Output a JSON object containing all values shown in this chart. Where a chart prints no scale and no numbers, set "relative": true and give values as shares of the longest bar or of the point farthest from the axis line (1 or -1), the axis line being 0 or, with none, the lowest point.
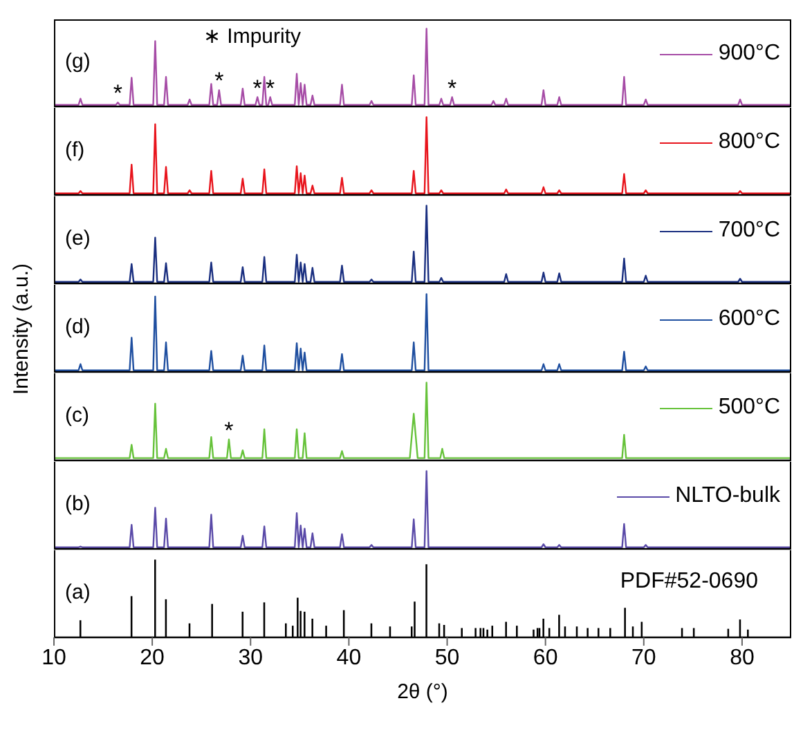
{
  "chart_data": [
    {
      "type": "line",
      "relative": true,
      "xlim": [
        10,
        85
      ],
      "tick_labels": false,
      "legend": "right",
      "annotations": [
        "(g)",
        "∗ Impurity",
        {
          "text": "*",
          "x": 16.5,
          "y": 0.05
        },
        {
          "text": "*",
          "x": 26.8,
          "y": 0.21
        },
        {
          "text": "*",
          "x": 30.7,
          "y": 0.12
        },
        {
          "text": "*",
          "x": 32,
          "y": 0.12
        },
        {
          "text": "*",
          "x": 50.5,
          "y": 0.12
        }
      ],
      "series": [
        {
          "name": "900°C",
          "color": "#a64ca6",
          "x": [
            10,
            12.5,
            12.7,
            12.9,
            16.3,
            16.5,
            16.7,
            17.7,
            17.9,
            18.1,
            20.1,
            20.3,
            20.5,
            21.2,
            21.4,
            21.6,
            23.6,
            23.8,
            24,
            25.8,
            26,
            26.2,
            26.6,
            26.8,
            27,
            29,
            29.2,
            29.4,
            30.5,
            30.7,
            30.9,
            31.2,
            31.4,
            31.6,
            31.8,
            32,
            32.2,
            34.5,
            34.7,
            34.9,
            35.1,
            35.3,
            35.5,
            35.7,
            36.1,
            36.3,
            36.5,
            39.1,
            39.3,
            39.5,
            42.1,
            42.3,
            42.5,
            46.4,
            46.6,
            46.8,
            47.7,
            47.9,
            48.1,
            49.2,
            49.4,
            49.6,
            50.3,
            50.5,
            50.7,
            54.5,
            54.7,
            54.9,
            55.8,
            56,
            56.2,
            59.6,
            59.8,
            60,
            61.2,
            61.4,
            61.6,
            67.8,
            68,
            68.2,
            70,
            70.2,
            70.4,
            79.6,
            79.8,
            80,
            85
          ],
          "values": [
            0.02,
            0.02,
            0.1,
            0.02,
            0.02,
            0.05,
            0.02,
            0.02,
            0.37,
            0.02,
            0.02,
            0.84,
            0.02,
            0.02,
            0.38,
            0.02,
            0.02,
            0.09,
            0.02,
            0.02,
            0.29,
            0.02,
            0.02,
            0.21,
            0.02,
            0.02,
            0.23,
            0.02,
            0.02,
            0.12,
            0.02,
            0.02,
            0.38,
            0.02,
            0.02,
            0.12,
            0.02,
            0.02,
            0.42,
            0.02,
            0.3,
            0.02,
            0.28,
            0.02,
            0.02,
            0.14,
            0.02,
            0.02,
            0.28,
            0.02,
            0.02,
            0.07,
            0.02,
            0.02,
            0.4,
            0.02,
            0.02,
            1,
            0.02,
            0.02,
            0.1,
            0.02,
            0.02,
            0.12,
            0.02,
            0.02,
            0.07,
            0.02,
            0.02,
            0.1,
            0.02,
            0.02,
            0.21,
            0.02,
            0.02,
            0.12,
            0.02,
            0.02,
            0.38,
            0.02,
            0.02,
            0.09,
            0.02,
            0.02,
            0.09,
            0.02,
            0.02
          ]
        }
      ]
    },
    {
      "type": "line",
      "relative": true,
      "xlim": [
        10,
        85
      ],
      "tick_labels": false,
      "legend": "right",
      "annotations": [
        "(f)"
      ],
      "series": [
        {
          "name": "800°C",
          "color": "#e8141c",
          "x": [
            10,
            12.5,
            12.7,
            12.9,
            17.7,
            17.9,
            18.1,
            20.1,
            20.3,
            20.5,
            21.2,
            21.4,
            21.6,
            23.6,
            23.8,
            24,
            25.8,
            26,
            26.2,
            29,
            29.2,
            29.4,
            31.2,
            31.4,
            31.6,
            34.5,
            34.7,
            34.9,
            35.1,
            35.3,
            35.5,
            35.7,
            36.1,
            36.3,
            36.5,
            39.1,
            39.3,
            39.5,
            42.1,
            42.3,
            42.5,
            46.4,
            46.6,
            46.8,
            47.7,
            47.9,
            48.1,
            49.2,
            49.4,
            49.6,
            55.8,
            56,
            56.2,
            59.6,
            59.8,
            60,
            61.2,
            61.4,
            61.6,
            67.8,
            68,
            68.2,
            70,
            70.2,
            70.4,
            79.6,
            79.8,
            80,
            85
          ],
          "values": [
            0.02,
            0.02,
            0.05,
            0.02,
            0.02,
            0.39,
            0.02,
            0.02,
            0.91,
            0.02,
            0.02,
            0.36,
            0.02,
            0.02,
            0.06,
            0.02,
            0.02,
            0.31,
            0.02,
            0.02,
            0.21,
            0.02,
            0.02,
            0.33,
            0.02,
            0.02,
            0.37,
            0.02,
            0.28,
            0.02,
            0.25,
            0.02,
            0.02,
            0.12,
            0.02,
            0.02,
            0.22,
            0.02,
            0.02,
            0.06,
            0.02,
            0.02,
            0.31,
            0.02,
            0.02,
            1,
            0.02,
            0.02,
            0.06,
            0.02,
            0.02,
            0.07,
            0.02,
            0.02,
            0.1,
            0.02,
            0.02,
            0.06,
            0.02,
            0.02,
            0.27,
            0.02,
            0.02,
            0.06,
            0.02,
            0.02,
            0.05,
            0.02,
            0.02
          ]
        }
      ]
    },
    {
      "type": "line",
      "relative": true,
      "xlim": [
        10,
        85
      ],
      "tick_labels": false,
      "legend": "right",
      "annotations": [
        "(e)"
      ],
      "series": [
        {
          "name": "700°C",
          "color": "#1a2f80",
          "x": [
            10,
            12.5,
            12.7,
            12.9,
            17.7,
            17.9,
            18.1,
            20.1,
            20.3,
            20.5,
            21.2,
            21.4,
            21.6,
            25.8,
            26,
            26.2,
            29,
            29.2,
            29.4,
            31.2,
            31.4,
            31.6,
            34.5,
            34.7,
            34.9,
            35.1,
            35.3,
            35.5,
            35.7,
            36.1,
            36.3,
            36.5,
            39.1,
            39.3,
            39.5,
            42.1,
            42.3,
            42.5,
            46.4,
            46.6,
            46.8,
            47.7,
            47.9,
            48.1,
            49.2,
            49.4,
            49.6,
            55.8,
            56,
            56.2,
            59.6,
            59.8,
            60,
            61.2,
            61.4,
            61.6,
            67.8,
            68,
            68.2,
            70,
            70.2,
            70.4,
            79.6,
            79.8,
            80,
            85
          ],
          "values": [
            0.02,
            0.02,
            0.05,
            0.02,
            0.02,
            0.25,
            0.02,
            0.02,
            0.59,
            0.02,
            0.02,
            0.26,
            0.02,
            0.02,
            0.27,
            0.02,
            0.02,
            0.21,
            0.02,
            0.02,
            0.34,
            0.02,
            0.02,
            0.37,
            0.02,
            0.27,
            0.02,
            0.25,
            0.02,
            0.02,
            0.2,
            0.02,
            0.02,
            0.23,
            0.02,
            0.02,
            0.05,
            0.02,
            0.02,
            0.41,
            0.02,
            0.02,
            1,
            0.02,
            0.02,
            0.07,
            0.02,
            0.02,
            0.12,
            0.02,
            0.02,
            0.14,
            0.02,
            0.02,
            0.13,
            0.02,
            0.02,
            0.32,
            0.02,
            0.02,
            0.1,
            0.02,
            0.02,
            0.06,
            0.02,
            0.02
          ]
        }
      ]
    },
    {
      "type": "line",
      "relative": true,
      "xlim": [
        10,
        85
      ],
      "tick_labels": false,
      "legend": "right",
      "ylabel": "Intensity (a.u.)",
      "annotations": [
        "(d)"
      ],
      "series": [
        {
          "name": "600°C",
          "color": "#1f4fa0",
          "x": [
            10,
            12.5,
            12.7,
            12.9,
            17.7,
            17.9,
            18.1,
            20.1,
            20.3,
            20.5,
            21.2,
            21.4,
            21.6,
            25.8,
            26,
            26.2,
            29,
            29.2,
            29.4,
            31.2,
            31.4,
            31.6,
            34.5,
            34.7,
            34.9,
            35.1,
            35.3,
            35.5,
            35.7,
            39.1,
            39.3,
            39.5,
            46.4,
            46.6,
            46.8,
            47.7,
            47.9,
            48.1,
            59.6,
            59.8,
            60,
            61.2,
            61.4,
            61.6,
            67.8,
            68,
            68.2,
            70,
            70.2,
            70.4,
            85
          ],
          "values": [
            0.02,
            0.02,
            0.1,
            0.02,
            0.02,
            0.44,
            0.02,
            0.02,
            0.97,
            0.02,
            0.02,
            0.38,
            0.02,
            0.02,
            0.27,
            0.02,
            0.02,
            0.21,
            0.02,
            0.02,
            0.34,
            0.02,
            0.02,
            0.37,
            0.02,
            0.3,
            0.02,
            0.25,
            0.02,
            0.02,
            0.23,
            0.02,
            0.02,
            0.38,
            0.02,
            0.02,
            1,
            0.02,
            0.02,
            0.1,
            0.02,
            0.02,
            0.1,
            0.02,
            0.02,
            0.26,
            0.02,
            0.02,
            0.07,
            0.02,
            0.02
          ]
        }
      ]
    },
    {
      "type": "line",
      "relative": true,
      "xlim": [
        10,
        85
      ],
      "tick_labels": false,
      "legend": "right",
      "annotations": [
        "(c)",
        {
          "text": "*",
          "x": 27.8,
          "y": 0.27
        }
      ],
      "series": [
        {
          "name": "500°C",
          "color": "#66c23a",
          "x": [
            10,
            17.7,
            17.9,
            18.1,
            20.1,
            20.3,
            20.5,
            21.2,
            21.4,
            21.6,
            25.8,
            26,
            26.2,
            27.6,
            27.8,
            28,
            29,
            29.2,
            29.4,
            31.2,
            31.4,
            31.6,
            34.5,
            34.7,
            34.9,
            35.3,
            35.5,
            35.7,
            39.1,
            39.3,
            39.5,
            46.2,
            46.6,
            47,
            47.7,
            47.9,
            48.1,
            49.3,
            49.5,
            49.7,
            67.8,
            68,
            68.2,
            85
          ],
          "values": [
            0.03,
            0.03,
            0.2,
            0.03,
            0.03,
            0.73,
            0.03,
            0.03,
            0.15,
            0.03,
            0.03,
            0.3,
            0.03,
            0.03,
            0.27,
            0.03,
            0.03,
            0.13,
            0.03,
            0.03,
            0.4,
            0.03,
            0.03,
            0.4,
            0.03,
            0.03,
            0.35,
            0.03,
            0.03,
            0.12,
            0.03,
            0.03,
            0.6,
            0.03,
            0.03,
            1,
            0.03,
            0.03,
            0.15,
            0.03,
            0.03,
            0.33,
            0.03,
            0.03
          ]
        }
      ]
    },
    {
      "type": "line",
      "relative": true,
      "xlim": [
        10,
        85
      ],
      "tick_labels": false,
      "legend": "right",
      "annotations": [
        "(b)"
      ],
      "series": [
        {
          "name": "NLTO-bulk",
          "color": "#5a4aa8",
          "x": [
            10,
            12.5,
            12.7,
            12.9,
            17.7,
            17.9,
            18.1,
            20.1,
            20.3,
            20.5,
            21.2,
            21.4,
            21.6,
            25.8,
            26,
            26.2,
            29,
            29.2,
            29.4,
            31.2,
            31.4,
            31.6,
            34.5,
            34.7,
            34.9,
            35.1,
            35.3,
            35.5,
            35.7,
            36.1,
            36.3,
            36.5,
            39.1,
            39.3,
            39.5,
            42.1,
            42.3,
            42.5,
            46.4,
            46.6,
            46.8,
            47.7,
            47.9,
            48.1,
            59.6,
            59.8,
            60,
            61.2,
            61.4,
            61.6,
            67.8,
            68,
            68.2,
            70,
            70.2,
            70.4,
            85
          ],
          "values": [
            0.02,
            0.02,
            0.03,
            0.02,
            0.02,
            0.31,
            0.02,
            0.02,
            0.53,
            0.02,
            0.02,
            0.39,
            0.02,
            0.02,
            0.44,
            0.02,
            0.02,
            0.17,
            0.02,
            0.02,
            0.29,
            0.02,
            0.02,
            0.46,
            0.02,
            0.3,
            0.02,
            0.26,
            0.02,
            0.02,
            0.2,
            0.02,
            0.02,
            0.19,
            0.02,
            0.02,
            0.05,
            0.02,
            0.02,
            0.38,
            0.02,
            0.02,
            1,
            0.02,
            0.02,
            0.06,
            0.02,
            0.02,
            0.05,
            0.02,
            0.02,
            0.32,
            0.02,
            0.02,
            0.05,
            0.02,
            0.02
          ]
        }
      ]
    },
    {
      "type": "bar",
      "relative": true,
      "xlim": [
        10,
        85
      ],
      "xticks": [
        10,
        20,
        30,
        40,
        50,
        60,
        70,
        80
      ],
      "tick_labels": "x",
      "xlabel": "2θ (°)",
      "annotations": [
        "(a)"
      ],
      "series": [
        {
          "name": "PDF#52-0690",
          "color": "#000000",
          "x": [
            12.7,
            17.9,
            20.3,
            21.4,
            23.8,
            26.1,
            29.2,
            31.4,
            33.6,
            34.3,
            34.8,
            35.1,
            35.5,
            36.3,
            37.7,
            39.5,
            42.3,
            44.2,
            46.4,
            46.7,
            47.9,
            49.2,
            49.7,
            51.5,
            52.9,
            53.4,
            53.7,
            54.1,
            54.6,
            56.0,
            57.1,
            58.8,
            59.2,
            59.4,
            59.8,
            60.4,
            61.4,
            62.0,
            63.2,
            64.3,
            65.4,
            66.6,
            68.1,
            68.9,
            69.8,
            73.9,
            75.1,
            78.6,
            79.8,
            80.6
          ],
          "values": [
            0.22,
            0.53,
            1,
            0.49,
            0.18,
            0.43,
            0.33,
            0.45,
            0.18,
            0.15,
            0.51,
            0.34,
            0.33,
            0.24,
            0.15,
            0.35,
            0.18,
            0.14,
            0.14,
            0.46,
            0.94,
            0.18,
            0.16,
            0.12,
            0.12,
            0.12,
            0.12,
            0.1,
            0.15,
            0.2,
            0.15,
            0.1,
            0.12,
            0.12,
            0.24,
            0.12,
            0.29,
            0.14,
            0.14,
            0.12,
            0.12,
            0.12,
            0.38,
            0.14,
            0.2,
            0.12,
            0.12,
            0.11,
            0.23,
            0.1
          ]
        }
      ]
    }
  ]
}
